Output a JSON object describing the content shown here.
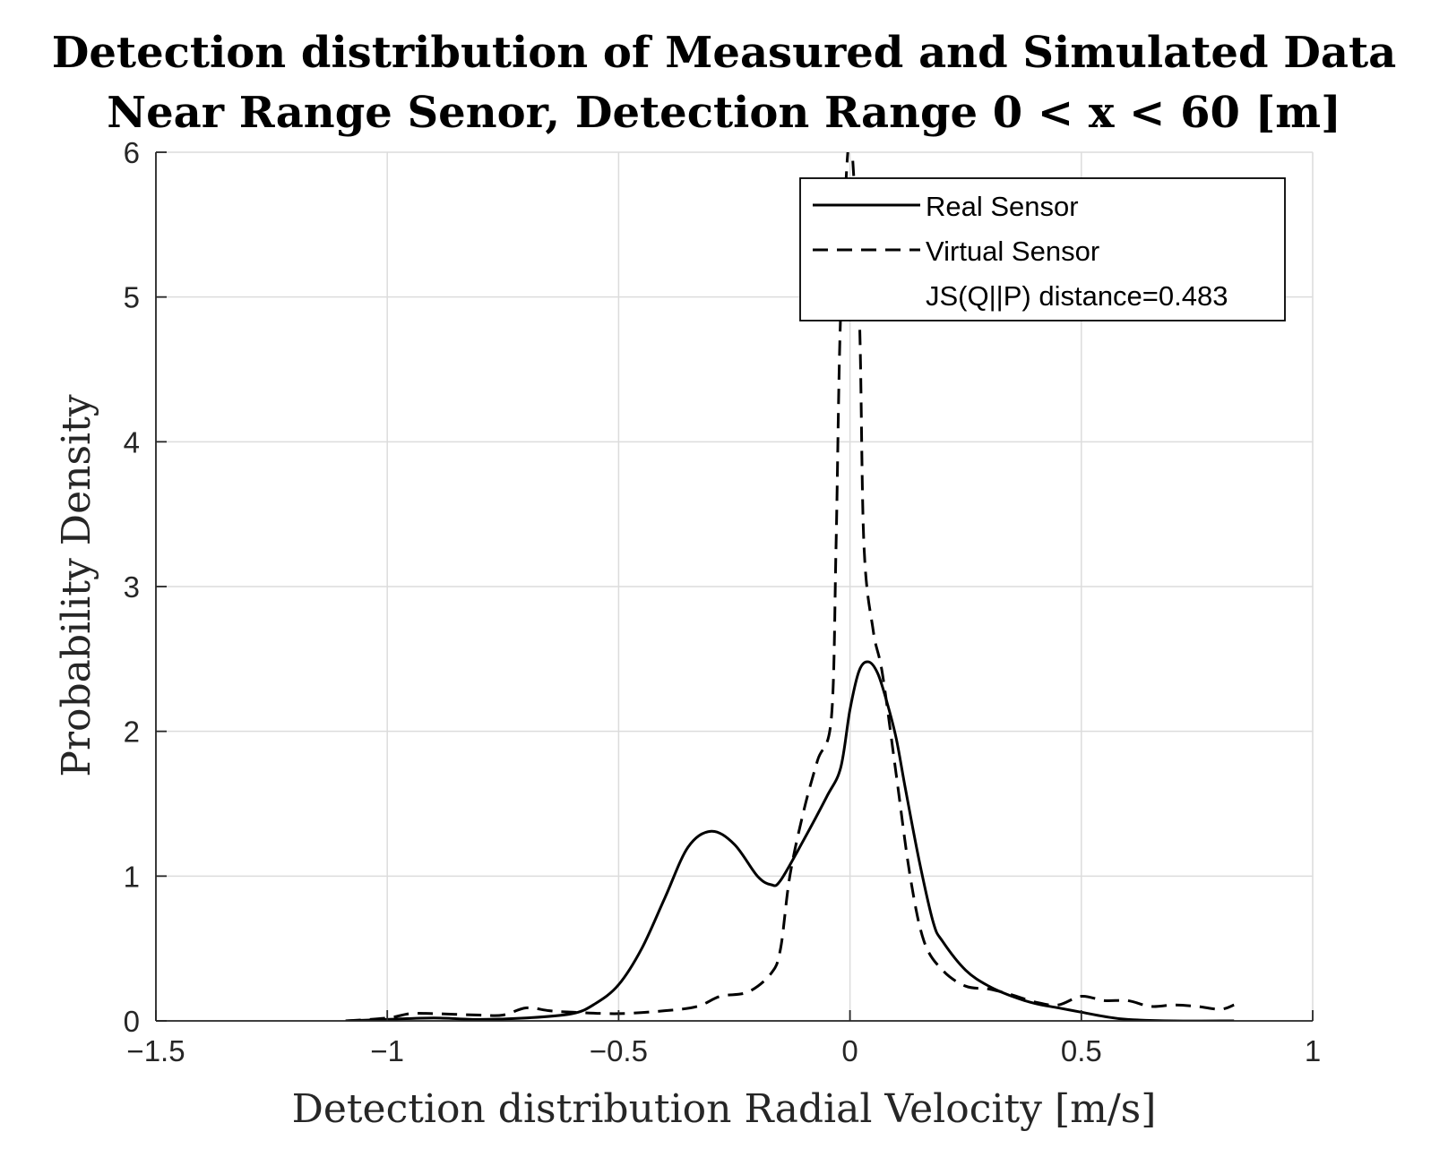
{
  "chart_data": {
    "type": "line",
    "title": "Detection distribution of Measured and Simulated Data",
    "subtitle": "Near Range Senor, Detection Range 0 < x < 60 [m]",
    "xlabel": "Detection distribution Radial Velocity [m/s]",
    "ylabel": "Probability Density",
    "xlim": [
      -1.5,
      1
    ],
    "ylim": [
      0,
      6
    ],
    "xticks": [
      -1.5,
      -1,
      -0.5,
      0,
      0.5,
      1
    ],
    "xtick_labels": [
      "−1.5",
      "−1",
      "−0.5",
      "0",
      "0.5",
      "1"
    ],
    "yticks": [
      0,
      1,
      2,
      3,
      4,
      5,
      6
    ],
    "ytick_labels": [
      "0",
      "1",
      "2",
      "3",
      "4",
      "5",
      "6"
    ],
    "grid": true,
    "legend_position": "top-right",
    "annotation": "JS(Q||P) distance=0.483",
    "series": [
      {
        "name": "Real Sensor",
        "style": "solid",
        "color": "#000000",
        "x": [
          -1.09,
          -1.0,
          -0.9,
          -0.8,
          -0.7,
          -0.6,
          -0.55,
          -0.5,
          -0.45,
          -0.4,
          -0.35,
          -0.3,
          -0.25,
          -0.2,
          -0.17,
          -0.15,
          -0.1,
          -0.05,
          -0.02,
          0.0,
          0.02,
          0.04,
          0.06,
          0.08,
          0.1,
          0.12,
          0.15,
          0.18,
          0.2,
          0.25,
          0.3,
          0.35,
          0.4,
          0.45,
          0.5,
          0.55,
          0.6,
          0.7,
          0.83
        ],
        "y": [
          0.0,
          0.01,
          0.02,
          0.01,
          0.02,
          0.05,
          0.12,
          0.25,
          0.5,
          0.85,
          1.2,
          1.31,
          1.22,
          1.0,
          0.94,
          0.97,
          1.25,
          1.55,
          1.75,
          2.15,
          2.42,
          2.48,
          2.4,
          2.2,
          1.95,
          1.6,
          1.1,
          0.68,
          0.55,
          0.35,
          0.24,
          0.17,
          0.12,
          0.09,
          0.06,
          0.03,
          0.01,
          0.0,
          0.0
        ]
      },
      {
        "name": "Virtual Sensor",
        "style": "dashed",
        "color": "#000000",
        "x": [
          -1.09,
          -1.0,
          -0.95,
          -0.9,
          -0.8,
          -0.75,
          -0.7,
          -0.65,
          -0.6,
          -0.5,
          -0.4,
          -0.33,
          -0.28,
          -0.22,
          -0.17,
          -0.15,
          -0.13,
          -0.1,
          -0.07,
          -0.04,
          -0.03,
          -0.02,
          0.0,
          0.02,
          0.03,
          0.05,
          0.07,
          0.1,
          0.13,
          0.16,
          0.2,
          0.25,
          0.3,
          0.35,
          0.4,
          0.45,
          0.5,
          0.55,
          0.6,
          0.65,
          0.7,
          0.75,
          0.8,
          0.83
        ],
        "y": [
          0.0,
          0.02,
          0.05,
          0.05,
          0.04,
          0.04,
          0.09,
          0.07,
          0.06,
          0.05,
          0.07,
          0.1,
          0.17,
          0.2,
          0.33,
          0.5,
          1.0,
          1.45,
          1.8,
          2.1,
          3.3,
          4.9,
          6.1,
          4.9,
          3.3,
          2.7,
          2.4,
          1.7,
          1.0,
          0.55,
          0.35,
          0.24,
          0.22,
          0.18,
          0.13,
          0.11,
          0.17,
          0.14,
          0.14,
          0.1,
          0.11,
          0.1,
          0.08,
          0.11
        ]
      }
    ]
  }
}
